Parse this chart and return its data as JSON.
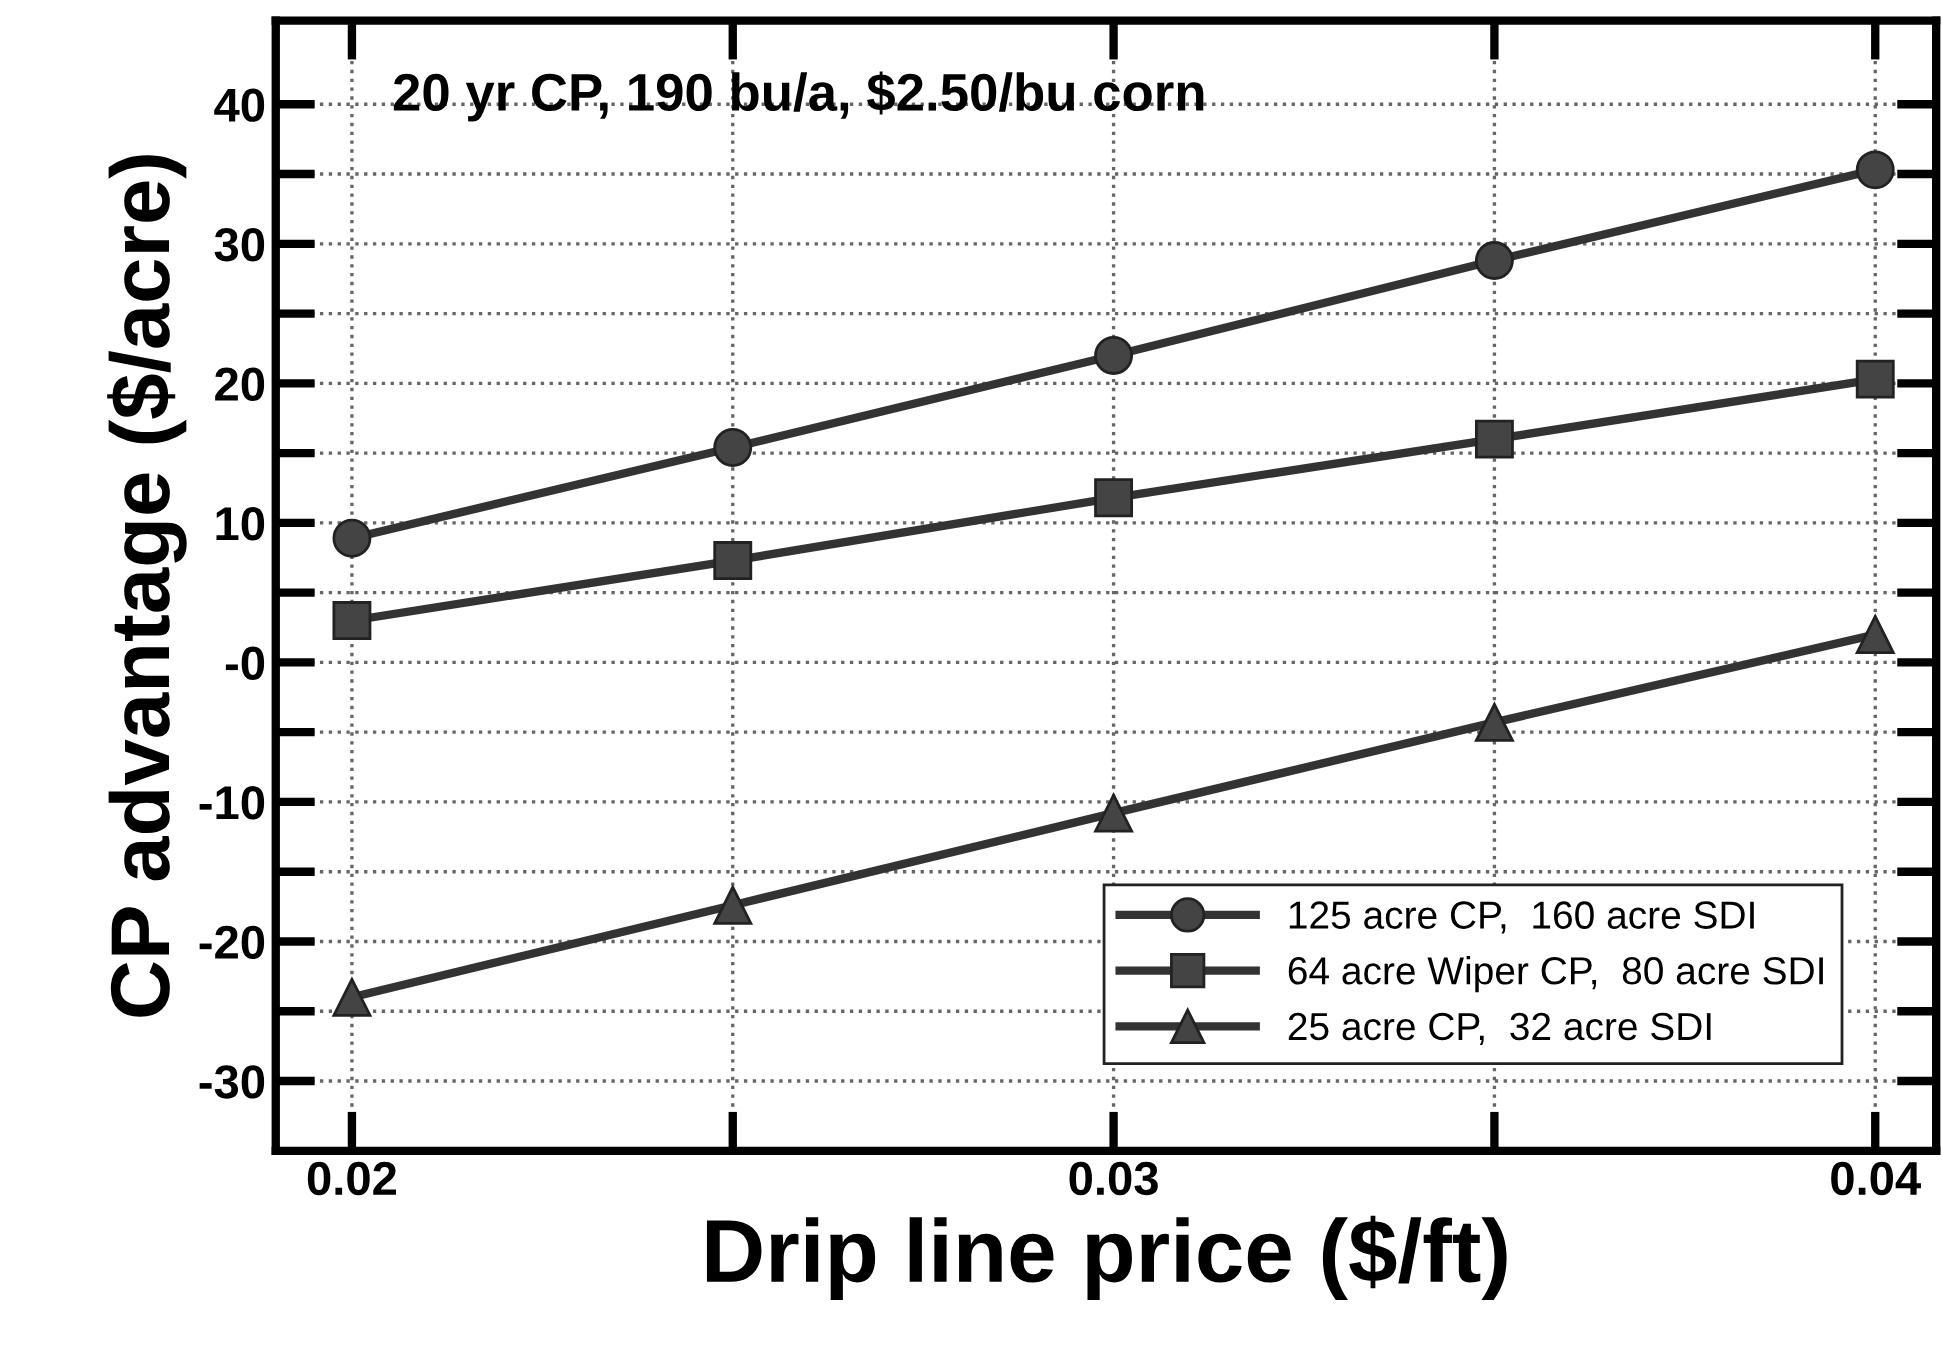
{
  "chart_data": {
    "type": "line",
    "title": "20 yr CP, 190 bu/a, $2.50/bu corn",
    "xlabel": "Drip line price ($/ft)",
    "ylabel": "CP advantage ($/acre)",
    "x": [
      0.02,
      0.025,
      0.03,
      0.035,
      0.04
    ],
    "series": [
      {
        "name": "125 acre CP,  160 acre SDI",
        "color": "#333333",
        "marker": "circle",
        "values": [
          8.9,
          15.4,
          22.0,
          28.8,
          35.3
        ]
      },
      {
        "name": "64 acre Wiper CP,  80 acre SDI",
        "color": "#333333",
        "marker": "square",
        "values": [
          3.0,
          7.3,
          11.8,
          16.0,
          20.3
        ]
      },
      {
        "name": "25 acre CP,  32 acre SDI",
        "color": "#333333",
        "marker": "triangle",
        "values": [
          -24.0,
          -17.4,
          -10.8,
          -4.3,
          2.0
        ]
      }
    ],
    "xlim": [
      0.019,
      0.0408
    ],
    "xticks": [
      0.02,
      {
        "value": 0.025,
        "label": null
      },
      0.03,
      {
        "value": 0.035,
        "label": null
      },
      0.04
    ],
    "ylim": [
      -35,
      46
    ],
    "yticks": [
      {
        "value": -30,
        "label": "-30"
      },
      {
        "value": -25,
        "label": null
      },
      {
        "value": -20,
        "label": "-20"
      },
      {
        "value": -15,
        "label": null
      },
      {
        "value": -10,
        "label": "-10"
      },
      {
        "value": -5,
        "label": null
      },
      {
        "value": 0,
        "label": "-0"
      },
      {
        "value": 5,
        "label": null
      },
      10,
      {
        "value": 15,
        "label": null
      },
      20,
      {
        "value": 25,
        "label": null
      },
      30,
      {
        "value": 35,
        "label": null
      },
      40
    ],
    "grid": true,
    "legend": "bottom right",
    "line_style": "solid"
  }
}
